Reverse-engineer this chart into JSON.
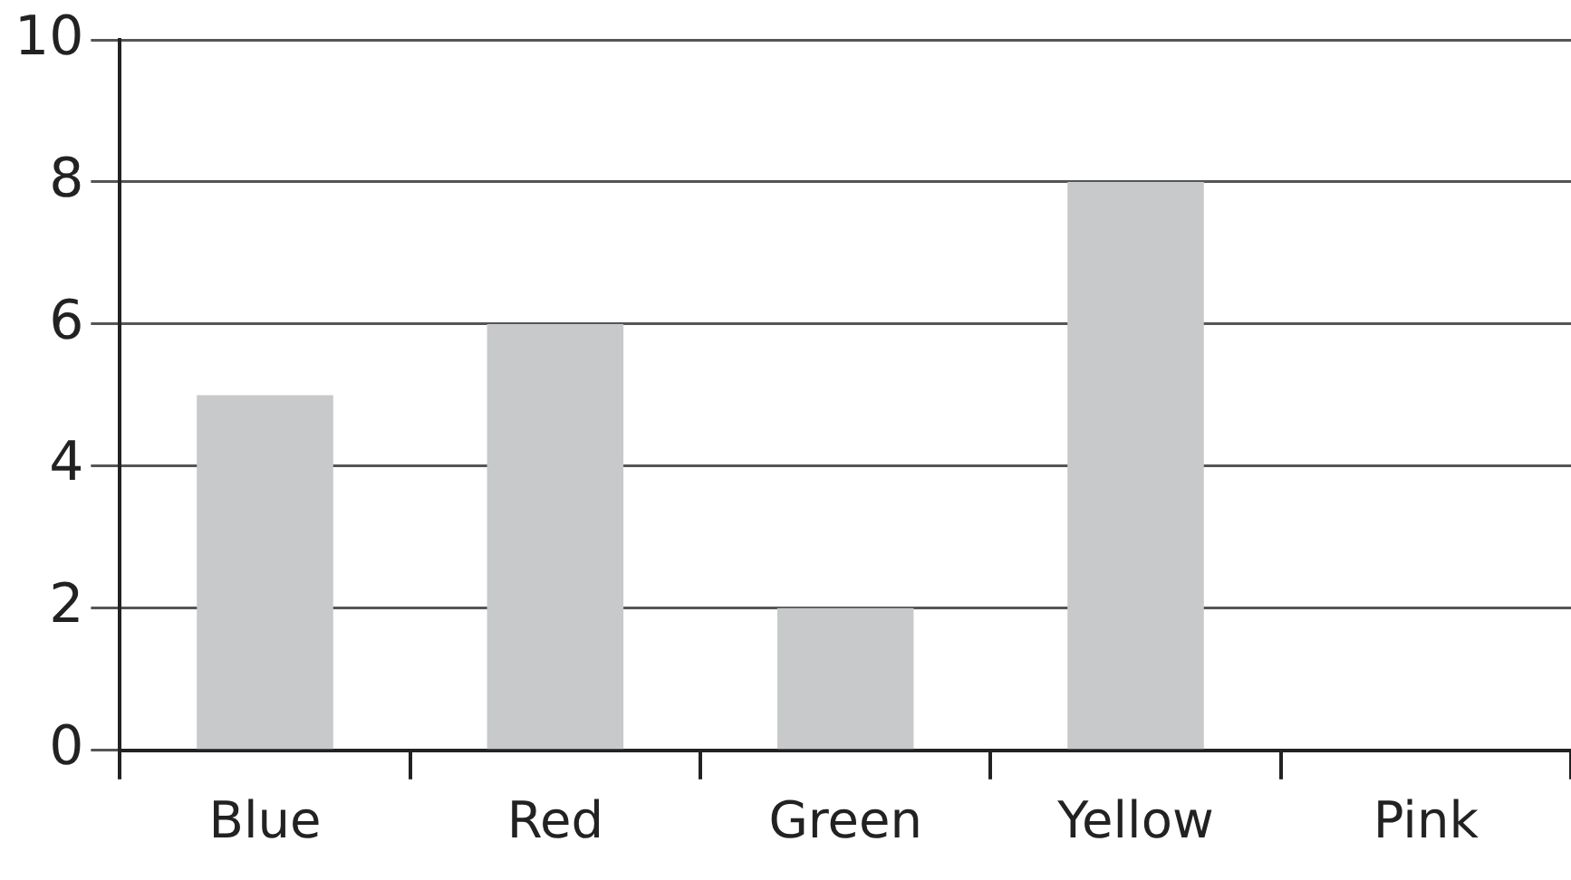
{
  "chart_data": {
    "type": "bar",
    "categories": [
      "Blue",
      "Red",
      "Green",
      "Yellow",
      "Pink"
    ],
    "values": [
      5,
      6,
      2,
      8,
      0
    ],
    "color": "#c8c9cb",
    "ylim": [
      0,
      10
    ],
    "yticks": [
      0,
      2,
      4,
      6,
      8,
      10
    ],
    "grid": "y",
    "legend": false
  }
}
